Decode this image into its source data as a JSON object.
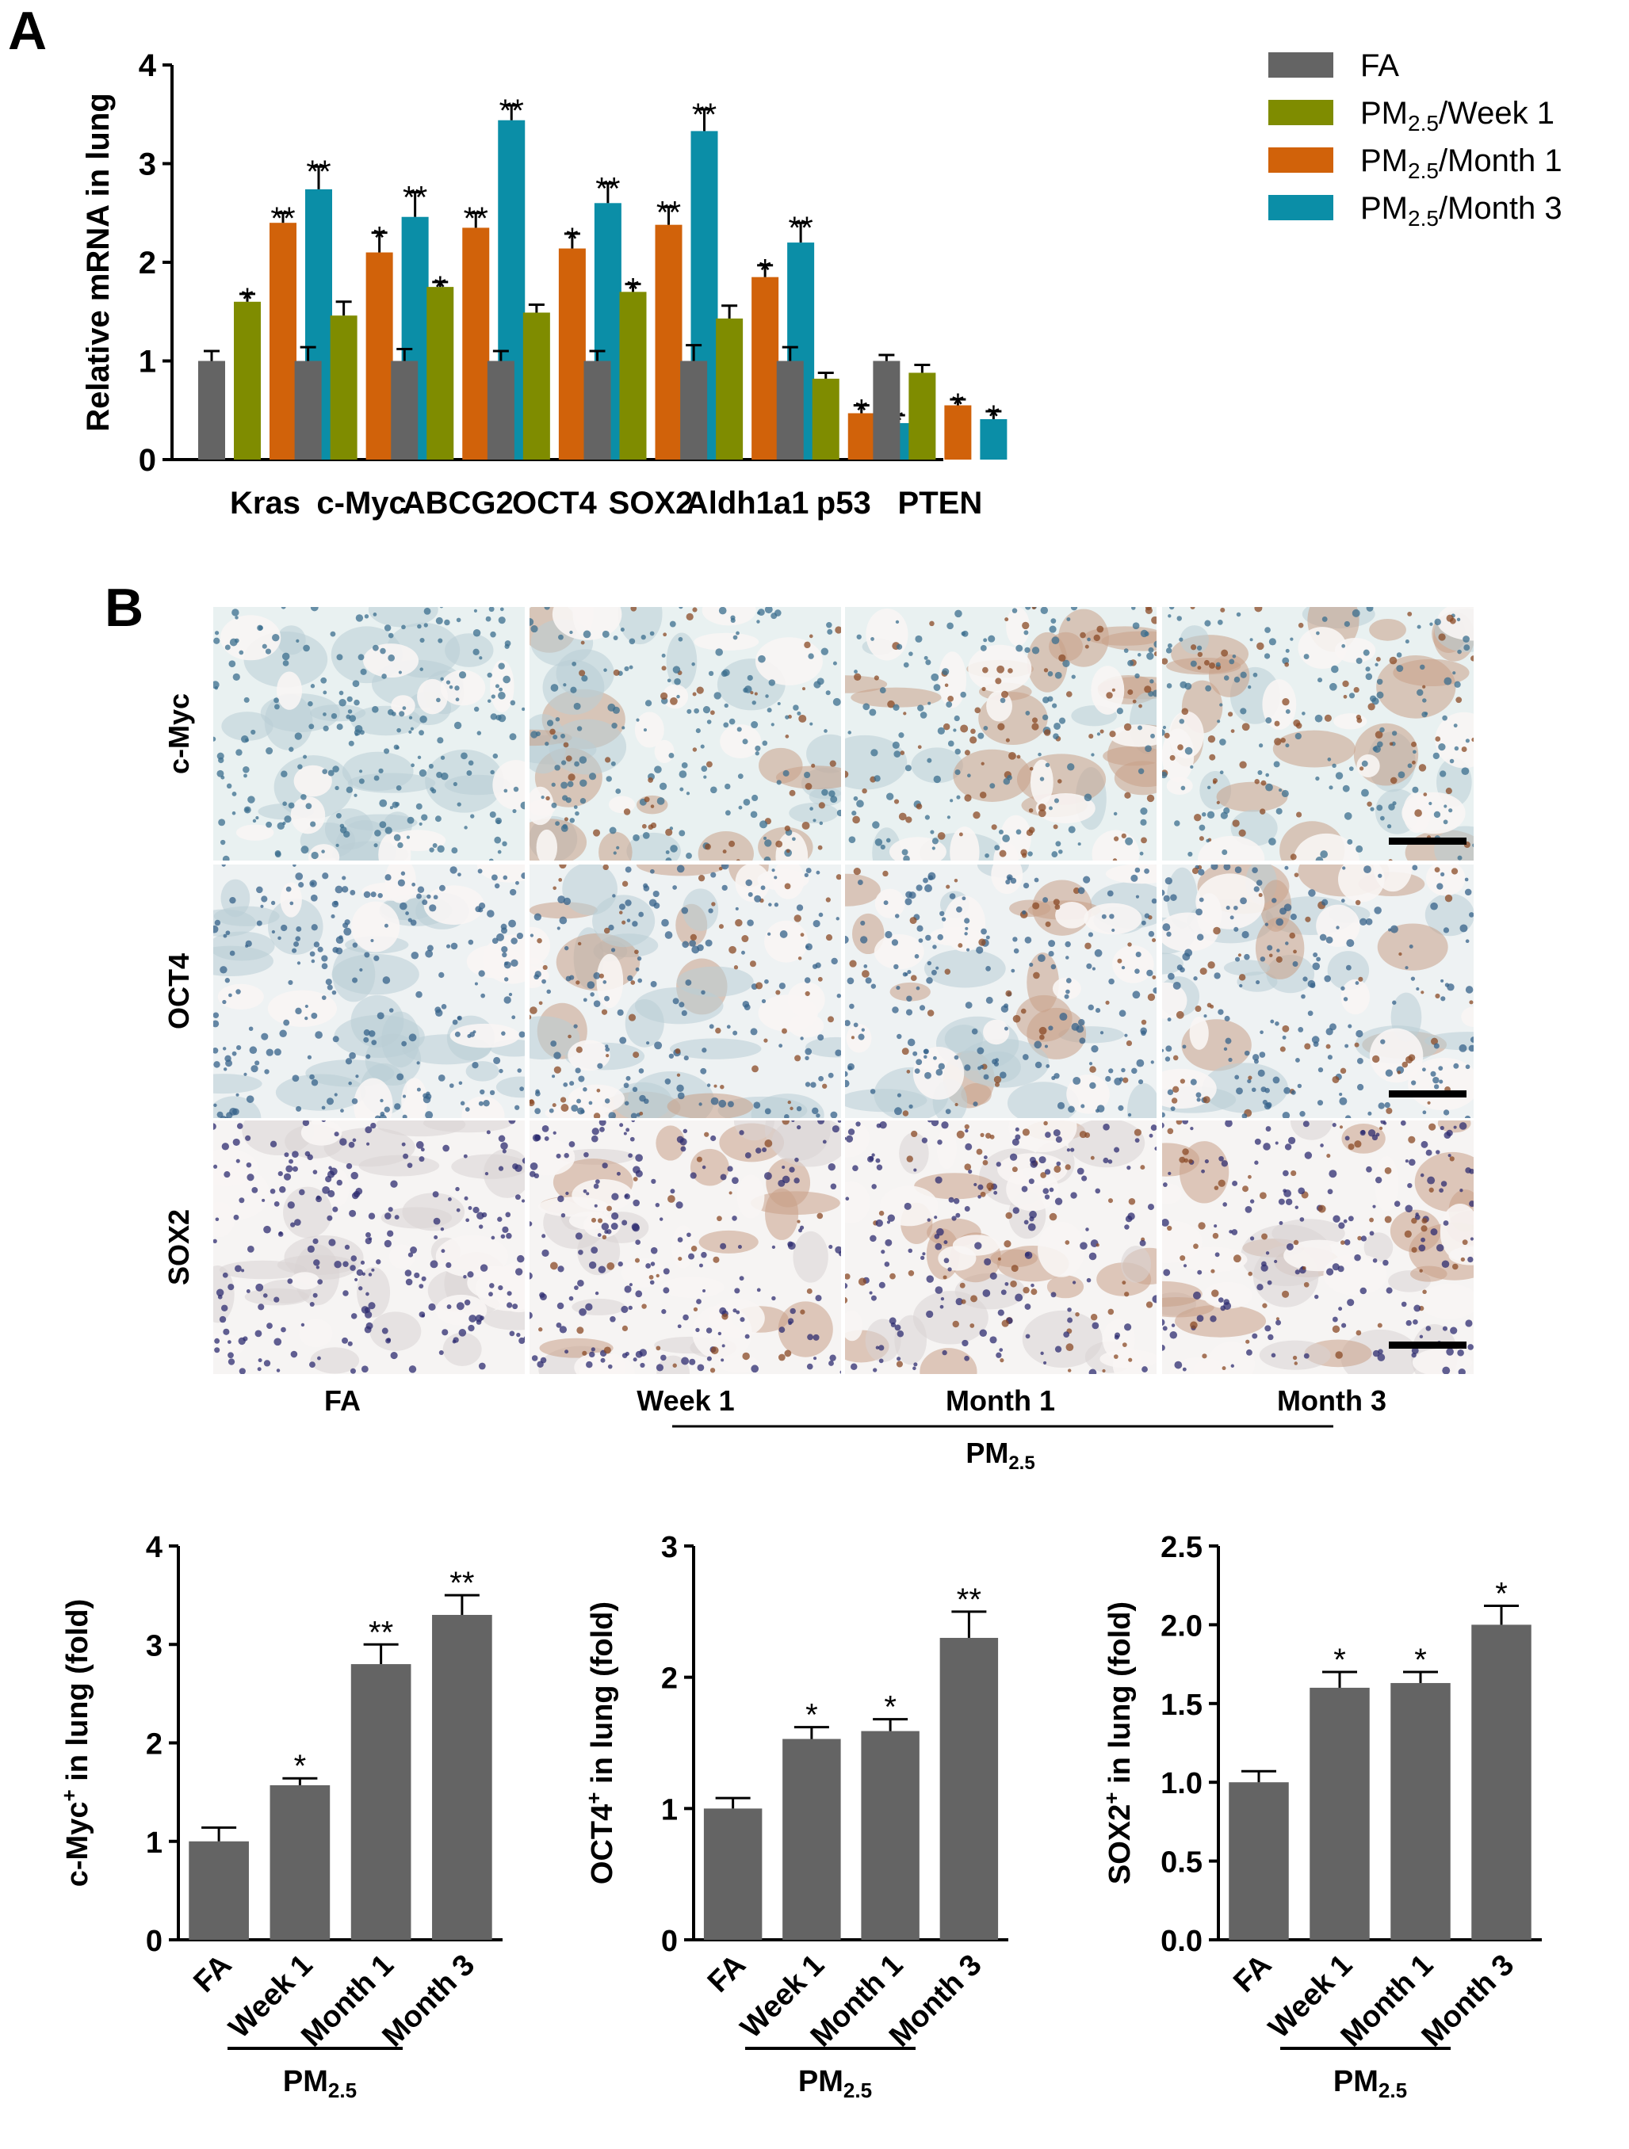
{
  "panel_labels": {
    "a": "A",
    "b": "B"
  },
  "colors": {
    "fa": "#646464",
    "week1": "#7f8c00",
    "month1": "#d1620a",
    "month3": "#0b8ea7",
    "bottom_bar": "#646464",
    "scale_bar": "#000000"
  },
  "chart_data": [
    {
      "type": "bar",
      "panel": "A",
      "ylabel": "Relative mRNA in lung",
      "ylim": [
        0,
        4
      ],
      "yticks": [
        "0",
        "1",
        "2",
        "3",
        "4"
      ],
      "categories": [
        "Kras",
        "c-Myc",
        "ABCG2",
        "OCT4",
        "SOX2",
        "Aldh1a1",
        "p53",
        "PTEN"
      ],
      "legend_position": "top-right",
      "series": [
        {
          "name": "FA",
          "legend_main": "FA",
          "legend_sub": "",
          "legend_rest": "",
          "values": [
            1.0,
            1.0,
            1.0,
            1.0,
            1.0,
            1.0,
            1.0,
            1.0
          ],
          "errors": [
            0.1,
            0.14,
            0.12,
            0.1,
            0.1,
            0.16,
            0.14,
            0.06
          ],
          "sig": [
            "",
            "",
            "",
            "",
            "",
            "",
            "",
            ""
          ]
        },
        {
          "name": "PM2.5/Week 1",
          "legend_main": "PM",
          "legend_sub": "2.5",
          "legend_rest": "/Week 1",
          "values": [
            1.6,
            1.46,
            1.75,
            1.49,
            1.7,
            1.43,
            0.82,
            0.88
          ],
          "errors": [
            0.08,
            0.14,
            0.05,
            0.08,
            0.08,
            0.13,
            0.06,
            0.08
          ],
          "sig": [
            "*",
            "",
            "*",
            "",
            "*",
            "",
            "",
            ""
          ]
        },
        {
          "name": "PM2.5/Month 1",
          "legend_main": "PM",
          "legend_sub": "2.5",
          "legend_rest": "/Month 1",
          "values": [
            2.4,
            2.1,
            2.35,
            2.14,
            2.38,
            1.85,
            0.47,
            0.55
          ],
          "errors": [
            0.1,
            0.2,
            0.15,
            0.15,
            0.18,
            0.12,
            0.08,
            0.06
          ],
          "sig": [
            "**",
            "*",
            "**",
            "*",
            "**",
            "*",
            "*",
            "*"
          ]
        },
        {
          "name": "PM2.5/Month 3",
          "legend_main": "PM",
          "legend_sub": "2.5",
          "legend_rest": "/Month 3",
          "values": [
            2.74,
            2.46,
            3.44,
            2.6,
            3.33,
            2.2,
            0.37,
            0.41
          ],
          "errors": [
            0.23,
            0.25,
            0.15,
            0.2,
            0.22,
            0.2,
            0.08,
            0.08
          ],
          "sig": [
            "**",
            "**",
            "**",
            "**",
            "**",
            "**",
            "*",
            "*"
          ]
        }
      ]
    },
    {
      "type": "bar",
      "panel": "B-bottom-1",
      "ylabel_main": "c-Myc",
      "ylabel_sup": "+",
      "ylabel_rest": " in lung (fold)",
      "ylim": [
        0,
        4
      ],
      "yticks": [
        "0",
        "1",
        "2",
        "3",
        "4"
      ],
      "categories": [
        "FA",
        "Week 1",
        "Month 1",
        "Month 3"
      ],
      "values": [
        1.0,
        1.57,
        2.8,
        3.3
      ],
      "errors": [
        0.14,
        0.07,
        0.2,
        0.2
      ],
      "sig": [
        "",
        "*",
        "**",
        "**"
      ],
      "group_label_main": "PM",
      "group_label_sub": "2.5"
    },
    {
      "type": "bar",
      "panel": "B-bottom-2",
      "ylabel_main": "OCT4",
      "ylabel_sup": "+",
      "ylabel_rest": " in lung (fold)",
      "ylim": [
        0,
        3
      ],
      "yticks": [
        "0",
        "1",
        "2",
        "3"
      ],
      "categories": [
        "FA",
        "Week 1",
        "Month 1",
        "Month 3"
      ],
      "values": [
        1.0,
        1.53,
        1.59,
        2.3
      ],
      "errors": [
        0.08,
        0.09,
        0.09,
        0.2
      ],
      "sig": [
        "",
        "*",
        "*",
        "**"
      ],
      "group_label_main": "PM",
      "group_label_sub": "2.5"
    },
    {
      "type": "bar",
      "panel": "B-bottom-3",
      "ylabel_main": "SOX2",
      "ylabel_sup": "+",
      "ylabel_rest": " in lung (fold)",
      "ylim": [
        0,
        2.5
      ],
      "yticks": [
        "0.0",
        "0.5",
        "1.0",
        "1.5",
        "2.0",
        "2.5"
      ],
      "categories": [
        "FA",
        "Week 1",
        "Month 1",
        "Month 3"
      ],
      "values": [
        1.0,
        1.6,
        1.63,
        2.0
      ],
      "errors": [
        0.07,
        0.1,
        0.07,
        0.12
      ],
      "sig": [
        "",
        "*",
        "*",
        "*"
      ],
      "group_label_main": "PM",
      "group_label_sub": "2.5"
    }
  ],
  "micrographs": {
    "rows": [
      "c-Myc",
      "OCT4",
      "SOX2"
    ],
    "columns": [
      "FA",
      "Week 1",
      "Month 1",
      "Month 3"
    ],
    "group_label_main": "PM",
    "group_label_sub": "2.5"
  }
}
